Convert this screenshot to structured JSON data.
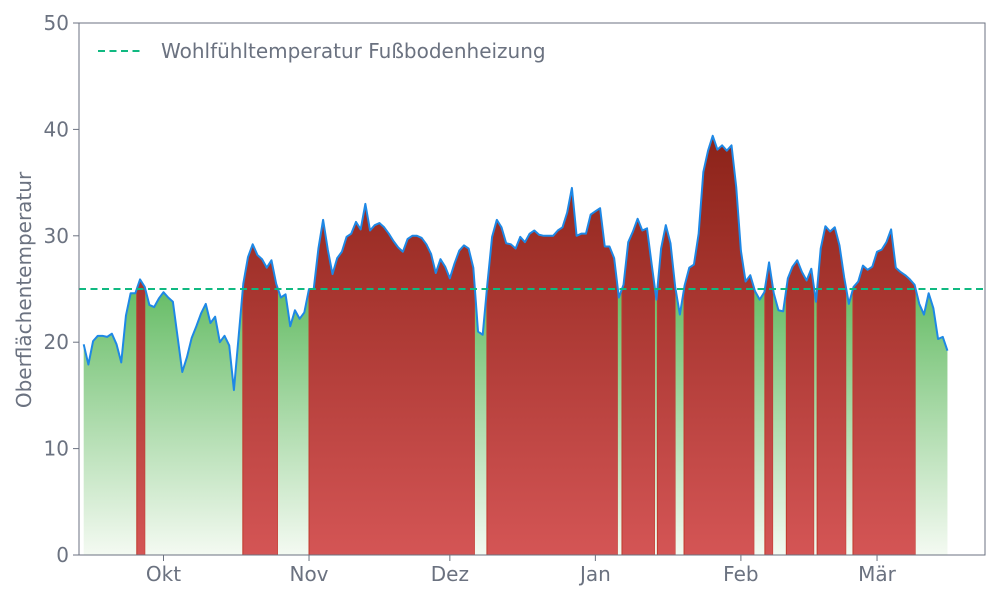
{
  "chart_data": {
    "type": "area",
    "ylabel": "Oberflächentemperatur",
    "ylim": [
      0,
      50
    ],
    "yticks": [
      0,
      10,
      20,
      30,
      40,
      50
    ],
    "x_range": [
      "2023-09-13",
      "2024-03-24"
    ],
    "xticks": [
      {
        "date": "2023-10-01",
        "label": "Okt"
      },
      {
        "date": "2023-11-01",
        "label": "Nov"
      },
      {
        "date": "2023-12-01",
        "label": "Dez"
      },
      {
        "date": "2024-01-01",
        "label": "Jan"
      },
      {
        "date": "2024-02-01",
        "label": "Feb"
      },
      {
        "date": "2024-03-01",
        "label": "Mär"
      }
    ],
    "threshold": {
      "name": "Wohlfühltemperatur Fußbodenheizung",
      "value": 25
    },
    "legend": {
      "position": "top-left",
      "entries": [
        "Wohlfühltemperatur Fußbodenheizung"
      ]
    },
    "grid": false,
    "colors": {
      "line": "#1e88e5",
      "threshold": "#10b981",
      "above_top": "#8b2218",
      "above_bottom": "#d45555",
      "below_top": "#5cb85c",
      "below_bottom": "#f4faf2",
      "frame": "#6b7280"
    },
    "series": [
      {
        "start_date": "2023-09-14",
        "step_days": 1,
        "values": [
          19.8,
          17.9,
          20.1,
          20.6,
          20.6,
          20.5,
          20.8,
          19.8,
          18.1,
          22.5,
          24.6,
          24.6,
          25.9,
          25.2,
          23.5,
          23.3,
          24.1,
          24.7,
          24.2,
          23.8,
          20.5,
          17.2,
          18.6,
          20.4,
          21.5,
          22.7,
          23.6,
          21.8,
          22.4,
          20.0,
          20.6,
          19.7,
          15.5,
          20.5,
          25.5,
          28.0,
          29.2,
          28.2,
          27.8,
          27.0,
          27.7,
          25.5,
          24.2,
          24.5,
          21.5,
          23.0,
          22.2,
          22.8,
          25.0,
          25.0,
          28.8,
          31.5,
          28.7,
          26.4,
          27.9,
          28.5,
          29.9,
          30.2,
          31.3,
          30.6,
          33.0,
          30.5,
          31.0,
          31.2,
          30.8,
          30.2,
          29.5,
          28.9,
          28.5,
          29.7,
          30.0,
          30.0,
          29.8,
          29.2,
          28.3,
          26.5,
          27.8,
          27.1,
          26.0,
          27.4,
          28.6,
          29.1,
          28.8,
          27.0,
          21.0,
          20.7,
          25.5,
          29.9,
          31.5,
          30.8,
          29.3,
          29.2,
          28.8,
          29.9,
          29.4,
          30.2,
          30.5,
          30.1,
          30.0,
          30.0,
          30.0,
          30.5,
          30.8,
          32.2,
          34.5,
          30.0,
          30.2,
          30.2,
          32.0,
          32.3,
          32.6,
          29.0,
          29.0,
          27.9,
          24.2,
          25.4,
          29.4,
          30.4,
          31.6,
          30.5,
          30.7,
          27.3,
          24.0,
          28.8,
          31.0,
          29.3,
          25.2,
          22.6,
          25.3,
          27.0,
          27.3,
          30.2,
          36.0,
          38.0,
          39.4,
          38.1,
          38.5,
          38.0,
          38.5,
          34.6,
          28.6,
          25.7,
          26.3,
          24.8,
          24.0,
          24.7,
          27.5,
          24.6,
          23.0,
          22.9,
          26.0,
          27.1,
          27.7,
          26.6,
          25.8,
          26.9,
          23.8,
          28.8,
          30.9,
          30.4,
          30.8,
          29.1,
          26.1,
          23.6,
          25.2,
          25.7,
          27.2,
          26.8,
          27.1,
          28.5,
          28.7,
          29.4,
          30.6,
          27.0,
          26.6,
          26.3,
          25.9,
          25.4,
          23.6,
          22.6,
          24.6,
          23.2,
          20.3,
          20.5,
          19.2
        ]
      }
    ]
  }
}
